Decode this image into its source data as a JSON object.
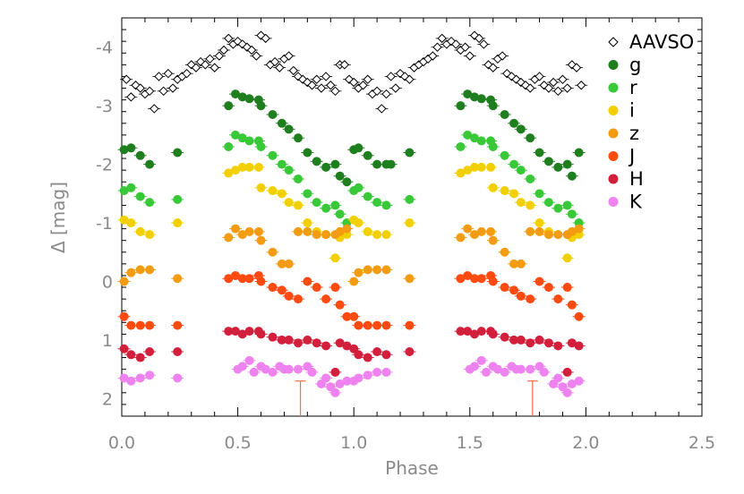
{
  "chart_data": {
    "type": "scatter",
    "title": "",
    "xlabel": "Phase",
    "ylabel": "Δ [mag]",
    "xlim": [
      0.0,
      2.5
    ],
    "ylim": [
      2.3,
      -4.5
    ],
    "y_inverted": true,
    "grid": false,
    "legend_placement": "top-right",
    "xticks": [
      0.0,
      0.5,
      1.0,
      1.5,
      2.0,
      2.5
    ],
    "xtick_labels": [
      "0.0",
      "0.5",
      "1.0",
      "1.5",
      "2.0",
      "2.5"
    ],
    "yticks": [
      -4,
      -3,
      -2,
      -1,
      0,
      1,
      2
    ],
    "ytick_labels": [
      "-4",
      "-3",
      "-2",
      "-1",
      "0",
      "1",
      "2"
    ],
    "series": [
      {
        "name": "AAVSO",
        "marker": "open-diamond",
        "color": "#000000",
        "x": [
          0.02,
          0.04,
          0.06,
          0.08,
          0.1,
          0.12,
          0.14,
          0.16,
          0.18,
          0.2,
          0.22,
          0.24,
          0.26,
          0.28,
          0.3,
          0.32,
          0.34,
          0.36,
          0.38,
          0.4,
          0.42,
          0.44,
          0.46,
          0.48,
          0.5,
          0.52,
          0.54,
          0.56,
          0.58,
          0.6,
          0.62,
          0.64,
          0.66,
          0.68,
          0.7,
          0.72,
          0.74,
          0.76,
          0.78,
          0.8,
          0.82,
          0.84,
          0.86,
          0.88,
          0.9,
          0.92,
          0.94,
          0.96,
          0.98,
          1.0,
          1.02,
          1.04,
          1.06,
          1.08,
          1.1,
          1.12,
          1.14,
          1.16,
          1.18,
          1.2,
          1.22,
          1.24,
          1.26,
          1.28,
          1.3,
          1.32,
          1.34,
          1.36,
          1.38,
          1.4,
          1.42,
          1.44,
          1.46,
          1.48,
          1.5,
          1.52,
          1.54,
          1.56,
          1.58,
          1.6,
          1.62,
          1.64,
          1.66,
          1.68,
          1.7,
          1.72,
          1.74,
          1.76,
          1.78,
          1.8,
          1.82,
          1.84,
          1.86,
          1.88,
          1.9,
          1.92,
          1.94,
          1.96,
          1.98
        ],
        "y": [
          -3.45,
          -3.15,
          -3.35,
          -3.3,
          -3.2,
          -3.25,
          -2.95,
          -3.5,
          -3.25,
          -3.55,
          -3.3,
          -3.45,
          -3.5,
          -3.55,
          -3.7,
          -3.65,
          -3.75,
          -3.7,
          -3.8,
          -3.65,
          -3.85,
          -3.95,
          -4.15,
          -4.05,
          -4.1,
          -4.05,
          -4.0,
          -3.95,
          -3.85,
          -4.2,
          -4.15,
          -3.7,
          -3.75,
          -3.65,
          -3.8,
          -3.85,
          -3.6,
          -3.5,
          -3.45,
          -3.4,
          -3.35,
          -3.45,
          -3.3,
          -3.5,
          -3.35,
          -3.25,
          -3.7,
          -3.7,
          -3.45,
          -3.4,
          -3.3,
          -3.35,
          -3.45,
          -3.2,
          -3.25,
          -2.95,
          -3.2,
          -3.5,
          -3.3,
          -3.55,
          -3.5,
          -3.45,
          -3.65,
          -3.7,
          -3.75,
          -3.8,
          -3.85,
          -4.0,
          -4.15,
          -4.05,
          -4.1,
          -4.05,
          -3.95,
          -4.0,
          -3.85,
          -4.2,
          -4.15,
          -4.05,
          -3.7,
          -3.65,
          -3.8,
          -3.85,
          -3.55,
          -3.5,
          -3.45,
          -3.4,
          -3.35,
          -3.3,
          -3.45,
          -3.5,
          -3.35,
          -3.3,
          -3.4,
          -3.25,
          -3.45,
          -3.3,
          -3.7,
          -3.65,
          -3.35
        ]
      },
      {
        "name": "g",
        "marker": "filled-circle",
        "color": "#1f7f1f",
        "x": [
          0.01,
          0.04,
          0.08,
          0.12,
          0.24,
          0.46,
          0.49,
          0.52,
          0.55,
          0.59,
          0.6,
          0.65,
          0.69,
          0.72,
          0.76,
          0.8,
          0.84,
          0.88,
          0.92,
          0.94,
          0.97,
          1.0,
          1.02,
          1.06,
          1.1,
          1.14,
          1.16,
          1.24,
          1.46,
          1.49,
          1.52,
          1.55,
          1.59,
          1.6,
          1.65,
          1.69,
          1.72,
          1.76,
          1.8,
          1.84,
          1.88,
          1.92,
          1.94,
          1.97
        ],
        "y": [
          -2.25,
          -2.28,
          -2.15,
          -2.0,
          -2.2,
          -3.0,
          -3.2,
          -3.15,
          -3.12,
          -3.1,
          -3.0,
          -2.85,
          -2.7,
          -2.6,
          -2.45,
          -2.2,
          -2.05,
          -1.95,
          -2.0,
          -1.8,
          -1.7,
          -2.25,
          -2.28,
          -2.15,
          -2.0,
          -2.0,
          -2.0,
          -2.2,
          -3.0,
          -3.2,
          -3.15,
          -3.12,
          -3.1,
          -3.0,
          -2.85,
          -2.7,
          -2.6,
          -2.45,
          -2.2,
          -2.05,
          -1.95,
          -2.0,
          -1.8,
          -2.2
        ]
      },
      {
        "name": "r",
        "marker": "filled-circle",
        "color": "#38c838",
        "x": [
          0.01,
          0.04,
          0.08,
          0.12,
          0.24,
          0.46,
          0.49,
          0.52,
          0.55,
          0.59,
          0.6,
          0.65,
          0.69,
          0.72,
          0.76,
          0.8,
          0.84,
          0.88,
          0.92,
          0.94,
          0.97,
          1.0,
          1.02,
          1.06,
          1.1,
          1.14,
          1.24,
          1.46,
          1.49,
          1.52,
          1.55,
          1.59,
          1.6,
          1.65,
          1.69,
          1.72,
          1.76,
          1.8,
          1.84,
          1.88,
          1.92,
          1.94,
          1.97
        ],
        "y": [
          -1.55,
          -1.6,
          -1.45,
          -1.35,
          -1.4,
          -2.3,
          -2.5,
          -2.45,
          -2.4,
          -2.4,
          -2.3,
          -2.15,
          -2.0,
          -1.9,
          -1.75,
          -1.5,
          -1.35,
          -1.25,
          -1.3,
          -1.15,
          -1.0,
          -1.55,
          -1.6,
          -1.45,
          -1.35,
          -1.3,
          -1.4,
          -2.3,
          -2.5,
          -2.45,
          -2.4,
          -2.4,
          -2.3,
          -2.15,
          -2.0,
          -1.9,
          -1.75,
          -1.5,
          -1.35,
          -1.25,
          -1.3,
          -1.15,
          -1.0
        ]
      },
      {
        "name": "i",
        "marker": "filled-circle",
        "color": "#f2d000",
        "x": [
          0.01,
          0.04,
          0.08,
          0.12,
          0.24,
          0.46,
          0.49,
          0.52,
          0.55,
          0.59,
          0.6,
          0.65,
          0.69,
          0.72,
          0.76,
          0.8,
          0.84,
          0.88,
          0.92,
          0.94,
          0.97,
          1.0,
          1.02,
          1.06,
          1.1,
          1.14,
          1.24,
          1.46,
          1.49,
          1.52,
          1.55,
          1.59,
          1.6,
          1.65,
          1.69,
          1.72,
          1.76,
          1.8,
          1.84,
          1.88,
          1.92,
          1.94,
          1.97
        ],
        "y": [
          -1.05,
          -1.0,
          -0.85,
          -0.8,
          -1.0,
          -1.85,
          -1.9,
          -1.95,
          -1.95,
          -1.95,
          -1.6,
          -1.55,
          -1.5,
          -1.35,
          -1.3,
          -1.0,
          -0.85,
          -0.8,
          -0.4,
          -0.75,
          -0.8,
          -1.05,
          -1.0,
          -0.85,
          -0.8,
          -0.8,
          -1.0,
          -1.85,
          -1.9,
          -1.95,
          -1.95,
          -1.95,
          -1.6,
          -1.55,
          -1.5,
          -1.35,
          -1.3,
          -1.0,
          -0.85,
          -0.8,
          -0.4,
          -0.75,
          -0.8
        ]
      },
      {
        "name": "z",
        "marker": "filled-circle",
        "color": "#f39c12",
        "x": [
          0.01,
          0.04,
          0.08,
          0.12,
          0.24,
          0.46,
          0.49,
          0.52,
          0.55,
          0.59,
          0.6,
          0.65,
          0.69,
          0.72,
          0.76,
          0.8,
          0.84,
          0.88,
          0.92,
          0.94,
          0.97,
          1.0,
          1.02,
          1.06,
          1.1,
          1.14,
          1.24,
          1.46,
          1.49,
          1.52,
          1.55,
          1.59,
          1.6,
          1.65,
          1.69,
          1.72,
          1.76,
          1.8,
          1.84,
          1.88,
          1.92,
          1.94,
          1.97
        ],
        "y": [
          0.0,
          -0.15,
          -0.2,
          -0.2,
          -0.05,
          -0.75,
          -0.9,
          -0.8,
          -0.85,
          -0.85,
          -0.7,
          -0.5,
          -0.3,
          -0.3,
          -0.85,
          -0.85,
          -0.8,
          -0.8,
          -0.8,
          -0.85,
          -0.9,
          0.0,
          -0.15,
          -0.2,
          -0.2,
          -0.2,
          -0.05,
          -0.75,
          -0.9,
          -0.8,
          -0.85,
          -0.85,
          -0.7,
          -0.5,
          -0.3,
          -0.3,
          -0.85,
          -0.85,
          -0.8,
          -0.8,
          -0.8,
          -0.85,
          -0.9
        ]
      },
      {
        "name": "J",
        "marker": "filled-circle",
        "color": "#ff4a10",
        "x": [
          0.01,
          0.04,
          0.08,
          0.12,
          0.24,
          0.46,
          0.49,
          0.52,
          0.55,
          0.59,
          0.6,
          0.65,
          0.69,
          0.72,
          0.76,
          0.8,
          0.84,
          0.88,
          0.92,
          0.94,
          0.97,
          1.0,
          1.02,
          1.06,
          1.1,
          1.14,
          1.24,
          1.46,
          1.49,
          1.52,
          1.55,
          1.59,
          1.6,
          1.65,
          1.69,
          1.72,
          1.76,
          1.8,
          1.84,
          1.88,
          1.92,
          1.94,
          1.97
        ],
        "y": [
          0.6,
          0.75,
          0.75,
          0.75,
          0.75,
          -0.05,
          -0.1,
          -0.05,
          -0.05,
          -0.1,
          0.0,
          0.1,
          0.15,
          0.25,
          0.3,
          0.0,
          0.1,
          0.3,
          0.1,
          0.4,
          0.6,
          0.6,
          0.75,
          0.75,
          0.75,
          0.75,
          0.75,
          -0.05,
          -0.1,
          -0.05,
          -0.05,
          -0.1,
          0.0,
          0.1,
          0.15,
          0.25,
          0.3,
          0.0,
          0.1,
          0.3,
          0.1,
          0.4,
          0.6
        ]
      },
      {
        "name": "H",
        "marker": "filled-circle",
        "color": "#d21f3c",
        "x": [
          0.01,
          0.04,
          0.08,
          0.12,
          0.24,
          0.46,
          0.49,
          0.52,
          0.55,
          0.59,
          0.6,
          0.65,
          0.69,
          0.72,
          0.76,
          0.8,
          0.84,
          0.88,
          0.92,
          0.94,
          0.97,
          1.0,
          1.02,
          1.06,
          1.1,
          1.14,
          1.24,
          1.46,
          1.49,
          1.52,
          1.55,
          1.59,
          1.6,
          1.65,
          1.69,
          1.72,
          1.76,
          1.8,
          1.84,
          1.88,
          1.92,
          1.94,
          1.97
        ],
        "y": [
          1.15,
          1.25,
          1.3,
          1.2,
          1.2,
          0.85,
          0.85,
          0.9,
          0.85,
          0.85,
          0.9,
          0.95,
          1.0,
          1.0,
          1.05,
          1.0,
          1.05,
          1.1,
          1.55,
          1.05,
          1.1,
          1.15,
          1.25,
          1.3,
          1.2,
          1.25,
          1.2,
          0.85,
          0.85,
          0.9,
          0.85,
          0.85,
          0.9,
          0.95,
          1.0,
          1.0,
          1.05,
          1.0,
          1.05,
          1.1,
          1.55,
          1.05,
          1.1
        ]
      },
      {
        "name": "K",
        "marker": "filled-circle",
        "color": "#ee82ee",
        "x": [
          0.01,
          0.04,
          0.08,
          0.12,
          0.24,
          0.5,
          0.52,
          0.55,
          0.57,
          0.6,
          0.62,
          0.65,
          0.68,
          0.7,
          0.72,
          0.76,
          0.8,
          0.82,
          0.86,
          0.88,
          0.9,
          0.92,
          0.94,
          0.97,
          1.0,
          1.02,
          1.06,
          1.1,
          1.14,
          1.5,
          1.52,
          1.55,
          1.57,
          1.6,
          1.62,
          1.65,
          1.68,
          1.7,
          1.72,
          1.76,
          1.8,
          1.82,
          1.86,
          1.88,
          1.9,
          1.92,
          1.94,
          1.97
        ],
        "y": [
          1.65,
          1.7,
          1.65,
          1.6,
          1.65,
          1.5,
          1.45,
          1.35,
          1.55,
          1.45,
          1.5,
          1.55,
          1.45,
          1.5,
          1.5,
          1.5,
          1.45,
          1.55,
          1.75,
          1.65,
          1.8,
          1.9,
          1.75,
          1.7,
          1.7,
          1.65,
          1.6,
          1.55,
          1.55,
          1.5,
          1.45,
          1.35,
          1.55,
          1.45,
          1.5,
          1.55,
          1.45,
          1.5,
          1.5,
          1.5,
          1.45,
          1.55,
          1.75,
          1.65,
          1.8,
          1.9,
          1.75,
          1.7
        ]
      }
    ],
    "reference_markers": [
      {
        "x": 0.77,
        "y_top": 1.7,
        "color": "#ff6b4a"
      },
      {
        "x": 1.77,
        "y_top": 1.7,
        "color": "#ff6b4a"
      }
    ]
  }
}
